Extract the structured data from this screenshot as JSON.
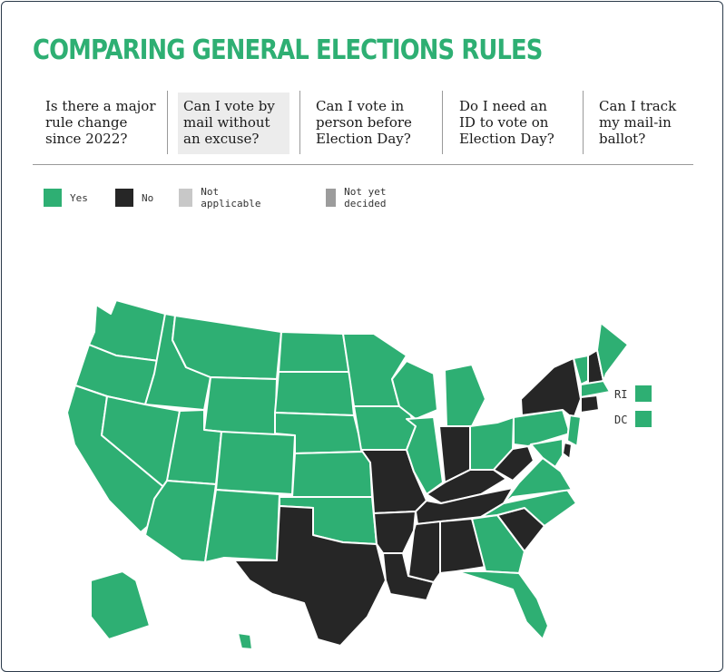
{
  "title": "COMPARING GENERAL ELECTIONS RULES",
  "tabs": [
    {
      "label": "Is there a major rule change since 2022?",
      "active": false
    },
    {
      "label": "Can I vote by mail without an excuse?",
      "active": true
    },
    {
      "label": "Can I vote in person before Election Day?",
      "active": false
    },
    {
      "label": "Do I need an ID to vote on Election Day?",
      "active": false
    },
    {
      "label": "Can I track my mail-in ballot?",
      "active": false
    }
  ],
  "legend": [
    {
      "label": "Yes",
      "color": "#2eaf73"
    },
    {
      "label": "No",
      "color": "#262626"
    },
    {
      "label": "Not applicable",
      "color": "#c8c8c8"
    },
    {
      "label": "Not yet decided",
      "color": "#9c9c9c"
    }
  ],
  "small_states": {
    "RI": "Yes",
    "DC": "Yes"
  },
  "map": {
    "answer_colors": {
      "Yes": "#2eaf73",
      "No": "#262626"
    },
    "states": {
      "WA": "Yes",
      "OR": "Yes",
      "CA": "Yes",
      "ID": "Yes",
      "NV": "Yes",
      "MT": "Yes",
      "WY": "Yes",
      "UT": "Yes",
      "AZ": "Yes",
      "CO": "Yes",
      "NM": "Yes",
      "ND": "Yes",
      "SD": "Yes",
      "NE": "Yes",
      "KS": "Yes",
      "OK": "Yes",
      "TX": "No",
      "MN": "Yes",
      "IA": "Yes",
      "MO": "No",
      "AR": "No",
      "LA": "No",
      "WI": "Yes",
      "IL": "Yes",
      "MI": "Yes",
      "IN": "No",
      "OH": "Yes",
      "KY": "No",
      "TN": "No",
      "MS": "No",
      "AL": "No",
      "GA": "Yes",
      "FL": "Yes",
      "SC": "No",
      "NC": "Yes",
      "VA": "Yes",
      "WV": "No",
      "PA": "Yes",
      "NY": "No",
      "VT": "Yes",
      "NH": "No",
      "ME": "Yes",
      "MA": "Yes",
      "CT": "No",
      "NJ": "Yes",
      "DE": "No",
      "MD": "Yes",
      "AK": "Yes",
      "HI": "Yes"
    }
  }
}
